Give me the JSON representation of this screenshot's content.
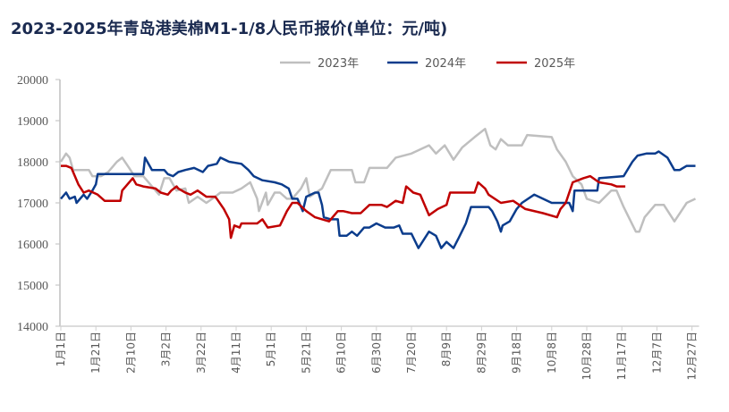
{
  "chart_data": {
    "type": "line",
    "title": "2023-2025年青岛港美棉M1-1/8人民币报价(单位：元/吨)",
    "xlabel": "",
    "ylabel": "",
    "ylim": [
      14000,
      20000
    ],
    "yticks": [
      14000,
      15000,
      16000,
      17000,
      18000,
      19000,
      20000
    ],
    "x_unit": "day of year (0 = 1月1日)",
    "xlim": [
      0,
      362
    ],
    "xtick_days": [
      0,
      20,
      40,
      60,
      80,
      100,
      120,
      140,
      160,
      180,
      200,
      220,
      240,
      260,
      280,
      300,
      320,
      340,
      360
    ],
    "xtick_labels": [
      "1月1日",
      "1月21日",
      "2月10日",
      "3月2日",
      "3月22日",
      "4月11日",
      "5月1日",
      "5月21日",
      "6月10日",
      "6月30日",
      "7月20日",
      "8月9日",
      "8月29日",
      "9月18日",
      "10月8日",
      "10月28日",
      "11月17日",
      "12月7日",
      "12月27日"
    ],
    "grid": false,
    "legend_position": "top",
    "series": [
      {
        "name": "2023年",
        "color": "#BFBFBF",
        "x": [
          0,
          3,
          5,
          7,
          16,
          18,
          23,
          27,
          32,
          35,
          39,
          42,
          47,
          52,
          56,
          59,
          62,
          66,
          71,
          73,
          78,
          83,
          88,
          91,
          98,
          103,
          108,
          112,
          113,
          117,
          118,
          122,
          125,
          129,
          132,
          137,
          140,
          142,
          149,
          154,
          166,
          168,
          173,
          176,
          186,
          191,
          200,
          210,
          214,
          219,
          224,
          229,
          236,
          242,
          245,
          248,
          251,
          255,
          263,
          266,
          280,
          283,
          288,
          292,
          297,
          300,
          307,
          314,
          317,
          321,
          328,
          330,
          333,
          339,
          344,
          350,
          357,
          362
        ],
        "values": [
          18000,
          18200,
          18100,
          17800,
          17800,
          17650,
          17650,
          17750,
          18000,
          18100,
          17850,
          17650,
          17650,
          17400,
          17200,
          17600,
          17600,
          17300,
          17350,
          17000,
          17150,
          17000,
          17150,
          17250,
          17250,
          17350,
          17500,
          17100,
          16800,
          17250,
          16950,
          17250,
          17250,
          17100,
          17100,
          17350,
          17600,
          17150,
          17350,
          17800,
          17800,
          17500,
          17500,
          17850,
          17850,
          18100,
          18200,
          18400,
          18200,
          18400,
          18050,
          18350,
          18600,
          18800,
          18400,
          18300,
          18550,
          18400,
          18400,
          18650,
          18600,
          18300,
          18000,
          17650,
          17450,
          17100,
          17000,
          17300,
          17300,
          16900,
          16300,
          16300,
          16650,
          16950,
          16950,
          16550,
          17000,
          17100
        ]
      },
      {
        "name": "2024年",
        "color": "#0B3C8C",
        "x": [
          0,
          3,
          5,
          8,
          9,
          13,
          15,
          18,
          20,
          21,
          47,
          48,
          52,
          59,
          61,
          64,
          67,
          71,
          76,
          81,
          84,
          89,
          91,
          96,
          103,
          107,
          110,
          115,
          122,
          126,
          130,
          132,
          135,
          138,
          140,
          145,
          147,
          149,
          150,
          154,
          158,
          159,
          163,
          166,
          169,
          173,
          176,
          180,
          185,
          190,
          193,
          195,
          200,
          204,
          210,
          214,
          217,
          220,
          224,
          227,
          231,
          234,
          244,
          246,
          249,
          251,
          252,
          256,
          260,
          263,
          270,
          280,
          290,
          292,
          293,
          306,
          307,
          321,
          326,
          329,
          334,
          339,
          341,
          346,
          350,
          353,
          357,
          362
        ],
        "values": [
          17100,
          17250,
          17100,
          17150,
          17000,
          17200,
          17100,
          17300,
          17450,
          17700,
          17700,
          18100,
          17800,
          17800,
          17700,
          17650,
          17750,
          17800,
          17850,
          17750,
          17900,
          17950,
          18100,
          18000,
          17950,
          17800,
          17650,
          17550,
          17500,
          17450,
          17350,
          17100,
          17100,
          16800,
          17150,
          17250,
          17250,
          16950,
          16650,
          16600,
          16600,
          16200,
          16200,
          16300,
          16200,
          16400,
          16400,
          16500,
          16400,
          16400,
          16450,
          16250,
          16250,
          15900,
          16300,
          16200,
          15900,
          16050,
          15900,
          16150,
          16500,
          16900,
          16900,
          16800,
          16550,
          16300,
          16450,
          16550,
          16850,
          17000,
          17200,
          17000,
          17000,
          16800,
          17300,
          17300,
          17600,
          17650,
          18000,
          18150,
          18200,
          18200,
          18250,
          18100,
          17800,
          17800,
          17900,
          17900
        ]
      },
      {
        "name": "2025年",
        "color": "#C00000",
        "x": [
          0,
          3,
          6,
          10,
          13,
          16,
          21,
          25,
          34,
          35,
          38,
          41,
          43,
          47,
          54,
          57,
          61,
          63,
          66,
          67,
          71,
          74,
          78,
          83,
          88,
          89,
          93,
          96,
          97,
          99,
          102,
          103,
          112,
          115,
          118,
          125,
          129,
          132,
          135,
          140,
          145,
          153,
          158,
          161,
          166,
          171,
          176,
          183,
          186,
          191,
          195,
          197,
          201,
          205,
          210,
          215,
          220,
          222,
          229,
          236,
          238,
          242,
          244,
          251,
          258,
          265,
          275,
          283,
          285,
          288,
          292,
          298,
          302,
          307,
          314,
          317,
          322
        ],
        "values": [
          17900,
          17900,
          17850,
          17450,
          17250,
          17300,
          17200,
          17050,
          17050,
          17300,
          17450,
          17600,
          17450,
          17400,
          17350,
          17250,
          17200,
          17300,
          17400,
          17350,
          17250,
          17200,
          17300,
          17150,
          17150,
          17100,
          16850,
          16600,
          16150,
          16450,
          16400,
          16500,
          16500,
          16600,
          16400,
          16450,
          16800,
          17000,
          17000,
          16800,
          16650,
          16550,
          16800,
          16800,
          16750,
          16750,
          16950,
          16950,
          16900,
          17050,
          17000,
          17400,
          17250,
          17200,
          16700,
          16850,
          16950,
          17250,
          17250,
          17250,
          17500,
          17350,
          17200,
          17000,
          17050,
          16850,
          16750,
          16650,
          16850,
          17000,
          17500,
          17600,
          17650,
          17500,
          17450,
          17400,
          17400
        ]
      }
    ]
  }
}
